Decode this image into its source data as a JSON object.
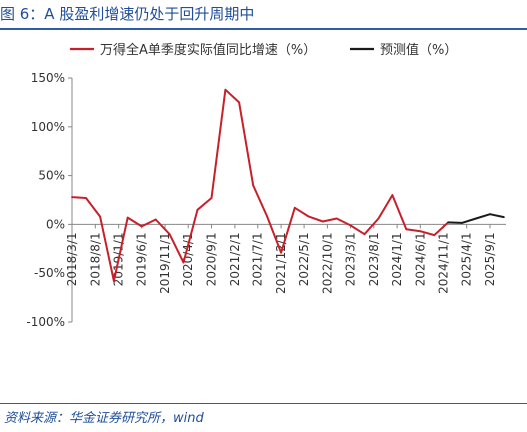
{
  "figure": {
    "title": "图 6：A 股盈利增速仍处于回升周期中",
    "source": "资料来源：华金证券研究所，wind"
  },
  "colors": {
    "actual": "#c8202a",
    "forecast": "#1a1a1a",
    "title": "#1f4e9a",
    "axis": "#888888"
  },
  "chart_data": {
    "type": "line",
    "ylim": [
      -100,
      150
    ],
    "yticks": [
      -100,
      -50,
      0,
      50,
      100,
      150
    ],
    "ytick_labels": [
      "-100%",
      "-50%",
      "0%",
      "50%",
      "100%",
      "150%"
    ],
    "x_labels": [
      "2018/3/1",
      "2018/8/1",
      "2019/1/1",
      "2019/6/1",
      "2019/11/1",
      "2020/4/1",
      "2020/9/1",
      "2021/2/1",
      "2021/7/1",
      "2021/12/1",
      "2022/5/1",
      "2022/10/1",
      "2023/3/1",
      "2023/8/1",
      "2024/1/1",
      "2024/6/1",
      "2024/11/1",
      "2025/4/1",
      "2025/9/1"
    ],
    "legend_position": "top",
    "series": [
      {
        "name": "万得全A单季度实际值同比增速（%）",
        "color": "#c8202a",
        "points": [
          {
            "x": "2018/3/1",
            "y": 28
          },
          {
            "x": "2018/6/1",
            "y": 27
          },
          {
            "x": "2018/9/1",
            "y": 8
          },
          {
            "x": "2018/12/1",
            "y": -58
          },
          {
            "x": "2019/3/1",
            "y": 7
          },
          {
            "x": "2019/6/1",
            "y": -2
          },
          {
            "x": "2019/9/1",
            "y": 5
          },
          {
            "x": "2019/12/1",
            "y": -10
          },
          {
            "x": "2020/3/1",
            "y": -39
          },
          {
            "x": "2020/6/1",
            "y": 15
          },
          {
            "x": "2020/9/1",
            "y": 27
          },
          {
            "x": "2020/12/1",
            "y": 138
          },
          {
            "x": "2021/3/1",
            "y": 125
          },
          {
            "x": "2021/6/1",
            "y": 40
          },
          {
            "x": "2021/9/1",
            "y": 8
          },
          {
            "x": "2021/12/1",
            "y": -29
          },
          {
            "x": "2022/3/1",
            "y": 17
          },
          {
            "x": "2022/6/1",
            "y": 8
          },
          {
            "x": "2022/9/1",
            "y": 3
          },
          {
            "x": "2022/12/1",
            "y": 6
          },
          {
            "x": "2023/3/1",
            "y": -1
          },
          {
            "x": "2023/6/1",
            "y": -10
          },
          {
            "x": "2023/9/1",
            "y": 6
          },
          {
            "x": "2023/12/1",
            "y": 30
          },
          {
            "x": "2024/3/1",
            "y": -5
          },
          {
            "x": "2024/6/1",
            "y": -7
          },
          {
            "x": "2024/9/1",
            "y": -11
          },
          {
            "x": "2024/12/1",
            "y": 2
          }
        ]
      },
      {
        "name": "预测值（%）",
        "color": "#1a1a1a",
        "points": [
          {
            "x": "2024/12/1",
            "y": 2
          },
          {
            "x": "2025/3/1",
            "y": 1.5
          },
          {
            "x": "2025/6/1",
            "y": 6
          },
          {
            "x": "2025/9/1",
            "y": 10.5
          },
          {
            "x": "2025/12/1",
            "y": 7.5
          }
        ]
      }
    ]
  }
}
